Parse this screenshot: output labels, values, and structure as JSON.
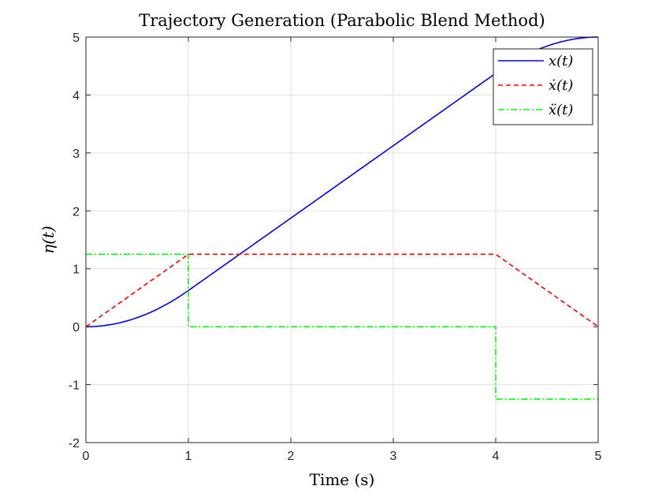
{
  "chart_data": {
    "type": "line",
    "title": "Trajectory Generation (Parabolic Blend Method)",
    "xlabel": "Time (s)",
    "ylabel": "η(t)",
    "xlim": [
      0,
      5
    ],
    "ylim": [
      -2,
      5
    ],
    "xticks": [
      0,
      1,
      2,
      3,
      4,
      5
    ],
    "yticks": [
      -2,
      -1,
      0,
      1,
      2,
      3,
      4,
      5
    ],
    "grid": true,
    "legend_position": "top-right",
    "series": [
      {
        "name": "x(t)",
        "color": "#0000ff",
        "style": "solid",
        "x": [
          0,
          0.25,
          0.5,
          0.75,
          1,
          4,
          4.25,
          4.5,
          4.75,
          5
        ],
        "y": [
          0,
          0.039,
          0.156,
          0.352,
          0.625,
          4.375,
          4.648,
          4.844,
          4.961,
          5
        ]
      },
      {
        "name": "ẋ(t)",
        "color": "#ff0000",
        "style": "dashed",
        "x": [
          0,
          1,
          4,
          5
        ],
        "y": [
          0,
          1.25,
          1.25,
          0
        ]
      },
      {
        "name": "ẍ(t)",
        "color": "#00ff00",
        "style": "dashdot",
        "x": [
          0,
          1,
          1,
          4,
          4,
          5
        ],
        "y": [
          1.25,
          1.25,
          0,
          0,
          -1.25,
          -1.25
        ]
      }
    ]
  }
}
